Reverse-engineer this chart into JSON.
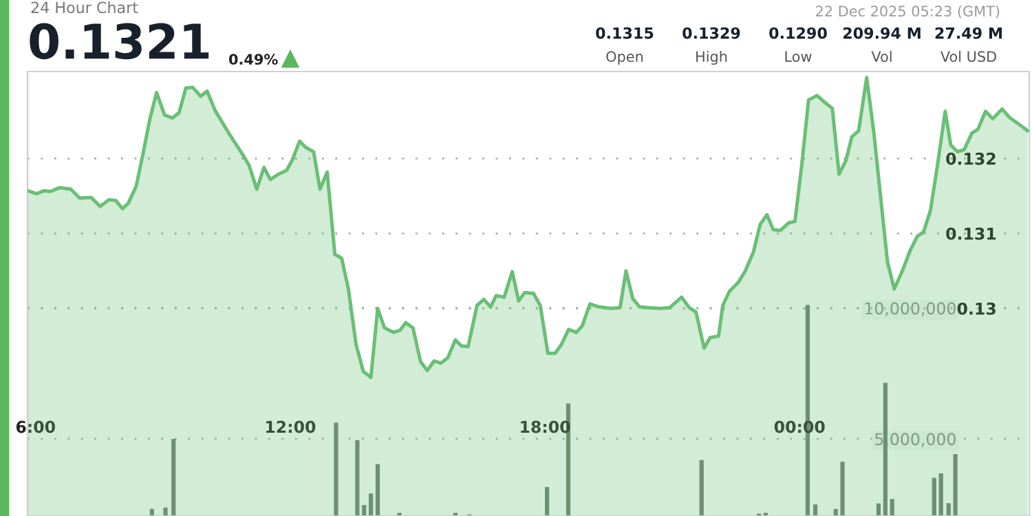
{
  "chart_data": {
    "type": "area",
    "title": "24 Hour Chart",
    "annotations": [
      "0.1321",
      "0.49%",
      "22 Dec 2025 05:23 (GMT)",
      "0.1315",
      "Open",
      "0.1329",
      "High",
      "0.1290",
      "Low",
      "209.94 M",
      "Vol",
      "27.49 M",
      "Vol USD"
    ],
    "xlim": [
      5.81,
      29.41
    ],
    "xticks": [
      {
        "value": 6,
        "label": "6:00"
      },
      {
        "value": 12,
        "label": "12:00"
      },
      {
        "value": 18,
        "label": "18:00"
      },
      {
        "value": 24,
        "label": "00:00"
      }
    ],
    "ylim": [
      0.12723,
      0.13316
    ],
    "yticks": [
      0.13,
      0.131,
      0.132
    ],
    "y2lim": [
      2050000,
      19050000
    ],
    "y2ticks": [
      {
        "value": 5000000,
        "label": "5,000,000"
      },
      {
        "value": 10000000,
        "label": "10,000,000"
      }
    ],
    "grid": "y",
    "series": [
      {
        "color": "#6abf76",
        "x": [
          5.81,
          6.03,
          6.19,
          6.35,
          6.56,
          6.83,
          7.04,
          7.31,
          7.52,
          7.73,
          7.89,
          8.05,
          8.19,
          8.37,
          8.53,
          8.69,
          8.85,
          9.04,
          9.22,
          9.38,
          9.54,
          9.7,
          9.89,
          10.04,
          10.23,
          10.55,
          10.87,
          11.03,
          11.21,
          11.38,
          11.53,
          11.72,
          11.91,
          12.04,
          12.22,
          12.36,
          12.55,
          12.7,
          12.87,
          13.05,
          13.21,
          13.37,
          13.55,
          13.72,
          13.9,
          14.06,
          14.22,
          14.43,
          14.59,
          14.72,
          14.89,
          15.07,
          15.23,
          15.39,
          15.55,
          15.71,
          15.89,
          16.03,
          16.19,
          16.4,
          16.56,
          16.72,
          16.85,
          17.04,
          17.23,
          17.38,
          17.52,
          17.73,
          17.89,
          18.07,
          18.24,
          18.39,
          18.56,
          18.74,
          18.88,
          19.06,
          19.27,
          19.56,
          19.77,
          19.91,
          20.07,
          20.23,
          20.44,
          20.71,
          20.94,
          21.22,
          21.4,
          21.56,
          21.75,
          21.89,
          22.09,
          22.19,
          22.35,
          22.56,
          22.72,
          22.91,
          23.07,
          23.23,
          23.38,
          23.55,
          23.74,
          23.89,
          24.05,
          24.21,
          24.41,
          24.59,
          24.77,
          24.93,
          25.09,
          25.23,
          25.39,
          25.58,
          25.75,
          25.91,
          26.07,
          26.23,
          26.42,
          26.61,
          26.77,
          26.92,
          27.08,
          27.24,
          27.43,
          27.56,
          27.72,
          27.88,
          28.06,
          28.2,
          28.38,
          28.55,
          28.77,
          28.94,
          29.16,
          29.37
        ],
        "values": [
          0.13157,
          0.13153,
          0.13157,
          0.13156,
          0.13161,
          0.13159,
          0.13147,
          0.13148,
          0.13136,
          0.13145,
          0.13144,
          0.13133,
          0.13141,
          0.13163,
          0.13206,
          0.13252,
          0.13288,
          0.13258,
          0.13254,
          0.13261,
          0.13294,
          0.13295,
          0.13283,
          0.1329,
          0.13264,
          0.13234,
          0.13206,
          0.13191,
          0.13159,
          0.13188,
          0.13172,
          0.13179,
          0.13184,
          0.13197,
          0.13223,
          0.13215,
          0.13209,
          0.13159,
          0.13182,
          0.13072,
          0.13067,
          0.13026,
          0.12952,
          0.12916,
          0.12908,
          0.13,
          0.12974,
          0.12968,
          0.12971,
          0.12981,
          0.12974,
          0.12929,
          0.12917,
          0.1293,
          0.12927,
          0.12934,
          0.12958,
          0.1295,
          0.12949,
          0.13004,
          0.13012,
          0.13002,
          0.13017,
          0.13015,
          0.13049,
          0.1301,
          0.13021,
          0.1302,
          0.13004,
          0.1294,
          0.1294,
          0.12952,
          0.12972,
          0.12968,
          0.12977,
          0.13006,
          0.13002,
          0.13,
          0.13001,
          0.1305,
          0.13013,
          0.13002,
          0.13001,
          0.13,
          0.13001,
          0.13015,
          0.13001,
          0.12995,
          0.12947,
          0.12961,
          0.12963,
          0.13004,
          0.13023,
          0.13035,
          0.1305,
          0.13075,
          0.13112,
          0.13125,
          0.13105,
          0.13104,
          0.13114,
          0.13116,
          0.13191,
          0.13278,
          0.13284,
          0.13275,
          0.13267,
          0.13179,
          0.13197,
          0.13229,
          0.13237,
          0.13308,
          0.13234,
          0.13148,
          0.13062,
          0.13026,
          0.1305,
          0.13078,
          0.13096,
          0.13102,
          0.1313,
          0.13188,
          0.13263,
          0.13218,
          0.13209,
          0.13212,
          0.13234,
          0.13239,
          0.13263,
          0.13253,
          0.13266,
          0.13255,
          0.13246,
          0.13237
        ]
      },
      {
        "type": "bar",
        "axis": "y2",
        "color": "#6f7a70",
        "x": [
          8.74,
          9.06,
          9.25,
          13.08,
          13.58,
          13.74,
          13.9,
          14.06,
          14.57,
          15.89,
          16.22,
          18.05,
          18.55,
          21.69,
          23.04,
          23.2,
          24.19,
          24.37,
          24.85,
          25.01,
          25.86,
          26.02,
          26.18,
          27.17,
          27.33,
          27.51,
          27.67
        ],
        "values": [
          2320000,
          2370000,
          5000000,
          5620000,
          4950000,
          2470000,
          2910000,
          4040000,
          2170000,
          2170000,
          2110000,
          3160000,
          6350000,
          4190000,
          2140000,
          2170000,
          10120000,
          2490000,
          2320000,
          4120000,
          2530000,
          7140000,
          2700000,
          3510000,
          3680000,
          2540000,
          4420000
        ]
      }
    ]
  }
}
